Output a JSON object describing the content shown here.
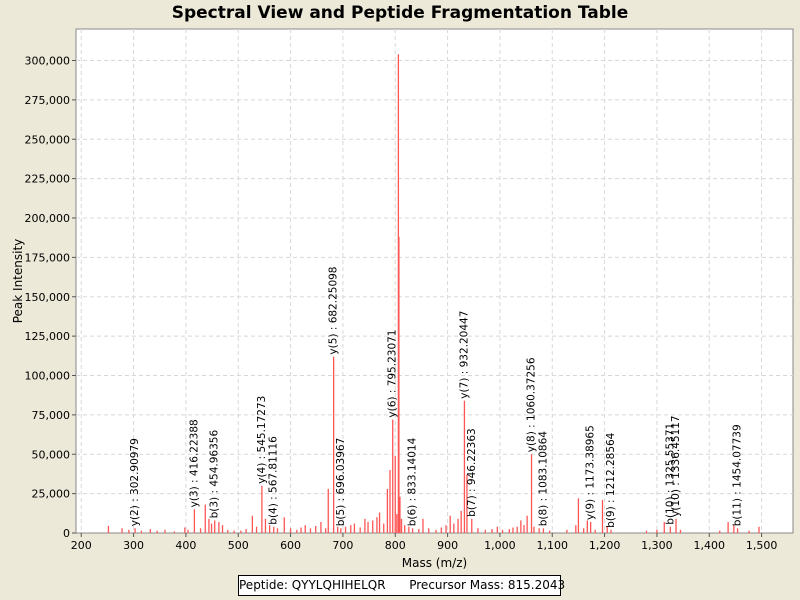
{
  "chart_data": {
    "type": "bar",
    "title": "Spectral View and Peptide Fragmentation Table",
    "xlabel": "Mass (m/z)",
    "ylabel": "Peak Intensity",
    "xlim": [
      190,
      1560
    ],
    "ylim": [
      0,
      320000
    ],
    "grid": true,
    "x_ticks": [
      200,
      300,
      400,
      500,
      600,
      700,
      800,
      900,
      1000,
      1100,
      1200,
      1300,
      1400,
      1500
    ],
    "x_tick_labels": [
      "200",
      "300",
      "400",
      "500",
      "600",
      "700",
      "800",
      "900",
      "1,000",
      "1,100",
      "1,200",
      "1,300",
      "1,400",
      "1,500"
    ],
    "y_ticks": [
      0,
      25000,
      50000,
      75000,
      100000,
      125000,
      150000,
      175000,
      200000,
      225000,
      250000,
      275000,
      300000
    ],
    "y_tick_labels": [
      "0",
      "25,000",
      "50,000",
      "75,000",
      "100,000",
      "125,000",
      "150,000",
      "175,000",
      "200,000",
      "225,000",
      "250,000",
      "275,000",
      "300,000"
    ],
    "peak_color": "#ff5555",
    "peaks": [
      {
        "mz": 252,
        "intensity": 4500
      },
      {
        "mz": 278,
        "intensity": 3000
      },
      {
        "mz": 291,
        "intensity": 2000
      },
      {
        "mz": 302.9,
        "intensity": 3000
      },
      {
        "mz": 315,
        "intensity": 1500
      },
      {
        "mz": 332,
        "intensity": 2500
      },
      {
        "mz": 345,
        "intensity": 1500
      },
      {
        "mz": 360,
        "intensity": 2000
      },
      {
        "mz": 378,
        "intensity": 1000
      },
      {
        "mz": 398,
        "intensity": 3500
      },
      {
        "mz": 404,
        "intensity": 2000
      },
      {
        "mz": 416.2,
        "intensity": 15000
      },
      {
        "mz": 428,
        "intensity": 3000
      },
      {
        "mz": 437,
        "intensity": 18000
      },
      {
        "mz": 444,
        "intensity": 9000
      },
      {
        "mz": 449,
        "intensity": 6000
      },
      {
        "mz": 455,
        "intensity": 8000
      },
      {
        "mz": 463,
        "intensity": 7000
      },
      {
        "mz": 470,
        "intensity": 5000
      },
      {
        "mz": 480,
        "intensity": 2000
      },
      {
        "mz": 492,
        "intensity": 1500
      },
      {
        "mz": 505,
        "intensity": 1500
      },
      {
        "mz": 515,
        "intensity": 2500
      },
      {
        "mz": 527,
        "intensity": 11000
      },
      {
        "mz": 535,
        "intensity": 4000
      },
      {
        "mz": 545.2,
        "intensity": 30000
      },
      {
        "mz": 552,
        "intensity": 9000
      },
      {
        "mz": 560,
        "intensity": 5000
      },
      {
        "mz": 567.8,
        "intensity": 4000
      },
      {
        "mz": 575,
        "intensity": 3000
      },
      {
        "mz": 588,
        "intensity": 10000
      },
      {
        "mz": 600,
        "intensity": 3000
      },
      {
        "mz": 612,
        "intensity": 2000
      },
      {
        "mz": 620,
        "intensity": 3500
      },
      {
        "mz": 628,
        "intensity": 5000
      },
      {
        "mz": 638,
        "intensity": 3000
      },
      {
        "mz": 648,
        "intensity": 4500
      },
      {
        "mz": 658,
        "intensity": 7000
      },
      {
        "mz": 667,
        "intensity": 3000
      },
      {
        "mz": 672,
        "intensity": 28000
      },
      {
        "mz": 682.3,
        "intensity": 112000
      },
      {
        "mz": 690,
        "intensity": 4000
      },
      {
        "mz": 696,
        "intensity": 3000
      },
      {
        "mz": 705,
        "intensity": 4000
      },
      {
        "mz": 715,
        "intensity": 5000
      },
      {
        "mz": 722,
        "intensity": 6000
      },
      {
        "mz": 733,
        "intensity": 3500
      },
      {
        "mz": 742,
        "intensity": 9000
      },
      {
        "mz": 748,
        "intensity": 7000
      },
      {
        "mz": 757,
        "intensity": 8000
      },
      {
        "mz": 765,
        "intensity": 10000
      },
      {
        "mz": 770,
        "intensity": 13000
      },
      {
        "mz": 778,
        "intensity": 6000
      },
      {
        "mz": 785,
        "intensity": 28000
      },
      {
        "mz": 790,
        "intensity": 40000
      },
      {
        "mz": 795.2,
        "intensity": 72000
      },
      {
        "mz": 800,
        "intensity": 49000
      },
      {
        "mz": 803,
        "intensity": 12000
      },
      {
        "mz": 806,
        "intensity": 304000
      },
      {
        "mz": 807,
        "intensity": 188000
      },
      {
        "mz": 809,
        "intensity": 23000
      },
      {
        "mz": 812,
        "intensity": 9000
      },
      {
        "mz": 818,
        "intensity": 5000
      },
      {
        "mz": 826,
        "intensity": 4000
      },
      {
        "mz": 833.1,
        "intensity": 3000
      },
      {
        "mz": 845,
        "intensity": 2500
      },
      {
        "mz": 853,
        "intensity": 9000
      },
      {
        "mz": 864,
        "intensity": 3000
      },
      {
        "mz": 878,
        "intensity": 2000
      },
      {
        "mz": 888,
        "intensity": 3500
      },
      {
        "mz": 897,
        "intensity": 5000
      },
      {
        "mz": 905,
        "intensity": 11000
      },
      {
        "mz": 912,
        "intensity": 6000
      },
      {
        "mz": 920,
        "intensity": 9000
      },
      {
        "mz": 926,
        "intensity": 14000
      },
      {
        "mz": 932.2,
        "intensity": 84000
      },
      {
        "mz": 937,
        "intensity": 37000
      },
      {
        "mz": 946.2,
        "intensity": 9000
      },
      {
        "mz": 958,
        "intensity": 3000
      },
      {
        "mz": 972,
        "intensity": 2000
      },
      {
        "mz": 985,
        "intensity": 2500
      },
      {
        "mz": 995,
        "intensity": 4000
      },
      {
        "mz": 1005,
        "intensity": 2000
      },
      {
        "mz": 1018,
        "intensity": 2500
      },
      {
        "mz": 1025,
        "intensity": 3500
      },
      {
        "mz": 1033,
        "intensity": 4000
      },
      {
        "mz": 1040,
        "intensity": 8000
      },
      {
        "mz": 1046,
        "intensity": 5000
      },
      {
        "mz": 1052,
        "intensity": 11000
      },
      {
        "mz": 1060.4,
        "intensity": 50000
      },
      {
        "mz": 1065,
        "intensity": 4000
      },
      {
        "mz": 1075,
        "intensity": 3000
      },
      {
        "mz": 1083.1,
        "intensity": 3000
      },
      {
        "mz": 1095,
        "intensity": 1500
      },
      {
        "mz": 1128,
        "intensity": 2000
      },
      {
        "mz": 1145,
        "intensity": 5000
      },
      {
        "mz": 1150,
        "intensity": 22000
      },
      {
        "mz": 1160,
        "intensity": 3000
      },
      {
        "mz": 1167,
        "intensity": 8000
      },
      {
        "mz": 1173.4,
        "intensity": 7000
      },
      {
        "mz": 1182,
        "intensity": 2000
      },
      {
        "mz": 1196,
        "intensity": 21000
      },
      {
        "mz": 1205,
        "intensity": 4000
      },
      {
        "mz": 1212.3,
        "intensity": 2000
      },
      {
        "mz": 1280,
        "intensity": 1500
      },
      {
        "mz": 1300,
        "intensity": 2000
      },
      {
        "mz": 1314,
        "intensity": 7000
      },
      {
        "mz": 1325.6,
        "intensity": 4000
      },
      {
        "mz": 1336.5,
        "intensity": 9000
      },
      {
        "mz": 1345,
        "intensity": 2000
      },
      {
        "mz": 1420,
        "intensity": 1500
      },
      {
        "mz": 1436,
        "intensity": 7000
      },
      {
        "mz": 1447,
        "intensity": 5000
      },
      {
        "mz": 1454.1,
        "intensity": 3000
      },
      {
        "mz": 1476,
        "intensity": 1500
      },
      {
        "mz": 1495,
        "intensity": 4000
      }
    ],
    "annotations": [
      {
        "label": "y(2) : 302.90979",
        "mz": 302.9,
        "intensity": 3000
      },
      {
        "label": "y(3) : 416.22388",
        "mz": 416.2,
        "intensity": 15000
      },
      {
        "label": "b(3) : 454.96356",
        "mz": 455.0,
        "intensity": 8000
      },
      {
        "label": "y(4) : 545.17273",
        "mz": 545.2,
        "intensity": 30000
      },
      {
        "label": "b(4) : 567.81116",
        "mz": 567.8,
        "intensity": 4000
      },
      {
        "label": "y(5) : 682.25098",
        "mz": 682.3,
        "intensity": 112000
      },
      {
        "label": "b(5) : 696.03967",
        "mz": 696.0,
        "intensity": 3000
      },
      {
        "label": "y(6) : 795.23071",
        "mz": 795.2,
        "intensity": 72000
      },
      {
        "label": "b(6) : 833.14014",
        "mz": 833.1,
        "intensity": 3000
      },
      {
        "label": "y(7) : 932.20447",
        "mz": 932.2,
        "intensity": 84000
      },
      {
        "label": "b(7) : 946.22363",
        "mz": 946.2,
        "intensity": 9000
      },
      {
        "label": "y(8) : 1060.37256",
        "mz": 1060.4,
        "intensity": 50000
      },
      {
        "label": "b(8) : 1083.10864",
        "mz": 1083.1,
        "intensity": 3000
      },
      {
        "label": "y(9) : 1173.38965",
        "mz": 1173.4,
        "intensity": 7000
      },
      {
        "label": "b(9) : 1212.28564",
        "mz": 1212.3,
        "intensity": 2000
      },
      {
        "label": "b(10) : 1325.55371",
        "mz": 1325.6,
        "intensity": 4000
      },
      {
        "label": "y(10) : 1336.45117",
        "mz": 1336.5,
        "intensity": 9000
      },
      {
        "label": "b(11) : 1454.07739",
        "mz": 1454.1,
        "intensity": 3000
      }
    ]
  },
  "footer": {
    "peptide_text": "Peptide: QYYLQHIHELQR",
    "precursor_text": "Precursor Mass: 815.2043"
  }
}
